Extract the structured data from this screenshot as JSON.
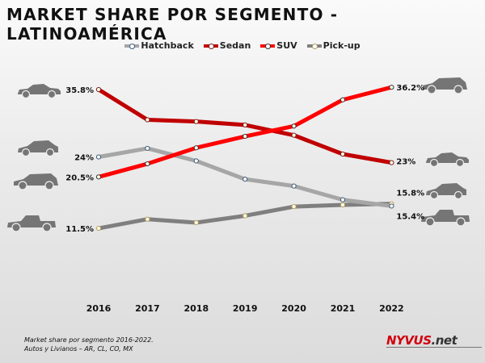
{
  "chart_data": {
    "type": "line",
    "title": "MARKET SHARE POR SEGMENTO - LATINOAMÉRICA",
    "xlabel": "",
    "ylabel": "",
    "categories": [
      "2016",
      "2017",
      "2018",
      "2019",
      "2020",
      "2021",
      "2022"
    ],
    "ylim": [
      10,
      38
    ],
    "grid": false,
    "legend_position": "top-center",
    "series": [
      {
        "name": "Hatchback",
        "color": "#a6a6a6",
        "marker_stroke": "#3d5a8a",
        "values": [
          24,
          25.5,
          23.3,
          20.1,
          18.9,
          16.5,
          15.4
        ]
      },
      {
        "name": "Sedan",
        "color": "#c00000",
        "marker_stroke": "#7a2020",
        "values": [
          35.8,
          30.5,
          30.2,
          29.6,
          27.8,
          24.5,
          23
        ]
      },
      {
        "name": "SUV",
        "color": "#ff0000",
        "marker_stroke": "#333333",
        "values": [
          20.5,
          22.8,
          25.6,
          27.6,
          29.4,
          34.0,
          36.2
        ]
      },
      {
        "name": "Pick-up",
        "color": "#7f7f7f",
        "marker_stroke": "#b8a060",
        "values": [
          11.5,
          13.1,
          12.5,
          13.7,
          15.3,
          15.6,
          15.8
        ]
      }
    ],
    "start_labels": [
      {
        "series": "Sedan",
        "text": "35.8%"
      },
      {
        "series": "Hatchback",
        "text": "24%"
      },
      {
        "series": "SUV",
        "text": "20.5%"
      },
      {
        "series": "Pick-up",
        "text": "11.5%"
      }
    ],
    "end_labels": [
      {
        "series": "SUV",
        "text": "36.2%"
      },
      {
        "series": "Sedan",
        "text": "23%"
      },
      {
        "series": "Pick-up",
        "text": "15.8%"
      },
      {
        "series": "Hatchback",
        "text": "15.4%"
      }
    ]
  },
  "header": {
    "title": "MARKET SHARE POR SEGMENTO - LATINOAMÉRICA"
  },
  "legend": [
    {
      "label": "Hatchback",
      "color": "#a6a6a6"
    },
    {
      "label": "Sedan",
      "color": "#c00000"
    },
    {
      "label": "SUV",
      "color": "#ff0000"
    },
    {
      "label": "Pick-up",
      "color": "#7f7f7f"
    }
  ],
  "footer": {
    "note_line1": "Market share por segmento 2016-2022.",
    "note_line2": "Autos y Livianos – AR, CL, CO, MX",
    "logo_part1": "NYVUS",
    "logo_part2": ".net"
  },
  "icons": {
    "left": [
      "sedan-car-icon",
      "hatchback-car-icon",
      "suv-car-icon",
      "pickup-truck-icon"
    ],
    "right": [
      "suv-car-icon",
      "sedan-car-icon",
      "hatchback-car-icon",
      "pickup-truck-icon"
    ],
    "color": "#757575"
  }
}
